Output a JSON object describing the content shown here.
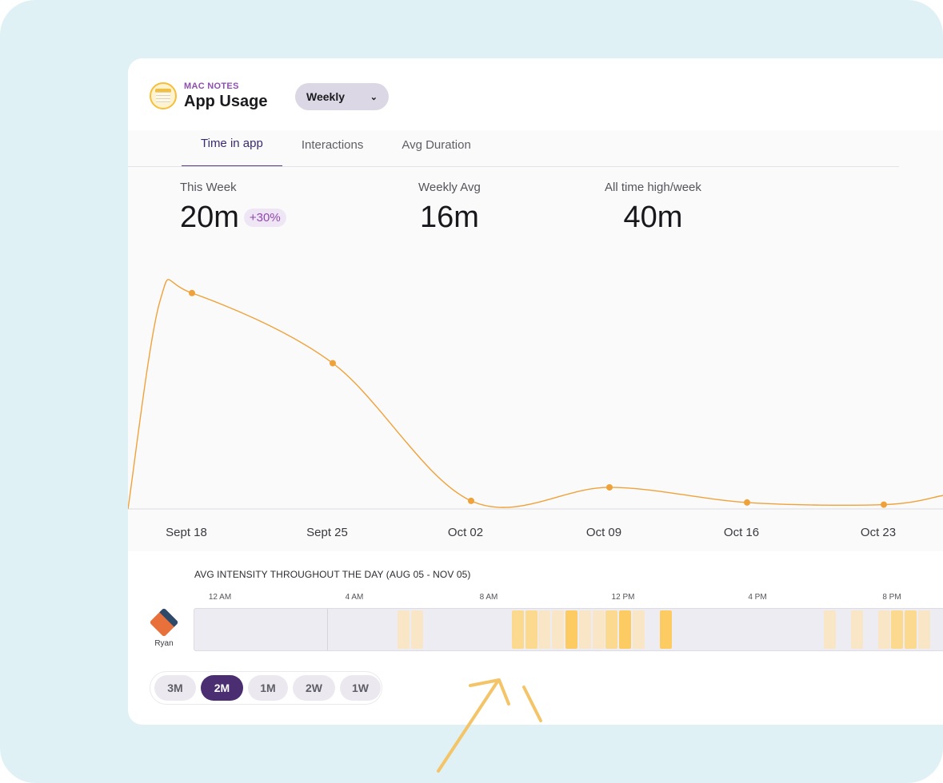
{
  "header": {
    "eyebrow": "MAC NOTES",
    "title": "App Usage",
    "period_select": "Weekly"
  },
  "tabs": [
    {
      "label": "Time in app",
      "active": true
    },
    {
      "label": "Interactions",
      "active": false
    },
    {
      "label": "Avg Duration",
      "active": false
    }
  ],
  "stats": {
    "this_week": {
      "label": "This Week",
      "value": "20m",
      "change": "+30%"
    },
    "weekly_avg": {
      "label": "Weekly Avg",
      "value": "16m"
    },
    "all_time_high": {
      "label": "All time high/week",
      "value": "40m"
    }
  },
  "colors": {
    "accent": "#4b2e72",
    "line": "#f0a23a",
    "heat_low": "#f8e6c7",
    "heat_mid": "#fbd98f",
    "heat_high": "#fccc63"
  },
  "chart_data": {
    "type": "line",
    "x": [
      "Sept 18",
      "Sept 25",
      "Oct 02",
      "Oct 09",
      "Oct 16",
      "Oct 23"
    ],
    "series": [
      {
        "values": [
          40,
          27,
          1.5,
          4,
          1.2,
          0.8
        ]
      }
    ],
    "ylim": [
      0,
      45
    ],
    "grid": false
  },
  "heatmap": {
    "title": "AVG INTENSITY THROUGHOUT THE DAY (AUG 05 - NOV 05)",
    "ticks": [
      "12 AM",
      "4 AM",
      "8 AM",
      "12 PM",
      "4 PM",
      "8 PM"
    ],
    "user": "Ryan",
    "cells": [
      {
        "hour": 6.0,
        "level": 1
      },
      {
        "hour": 6.4,
        "level": 1
      },
      {
        "hour": 9.4,
        "level": 2
      },
      {
        "hour": 9.8,
        "level": 2
      },
      {
        "hour": 10.2,
        "level": 1
      },
      {
        "hour": 10.6,
        "level": 1
      },
      {
        "hour": 11.0,
        "level": 3
      },
      {
        "hour": 11.4,
        "level": 1
      },
      {
        "hour": 11.8,
        "level": 1
      },
      {
        "hour": 12.2,
        "level": 2
      },
      {
        "hour": 12.6,
        "level": 3
      },
      {
        "hour": 13.0,
        "level": 1
      },
      {
        "hour": 13.8,
        "level": 3
      },
      {
        "hour": 18.7,
        "level": 1
      },
      {
        "hour": 19.5,
        "level": 1
      },
      {
        "hour": 20.3,
        "level": 1
      },
      {
        "hour": 20.7,
        "level": 2
      },
      {
        "hour": 21.1,
        "level": 2
      },
      {
        "hour": 21.5,
        "level": 1
      }
    ]
  },
  "ranges": [
    {
      "label": "3M",
      "active": false
    },
    {
      "label": "2M",
      "active": true
    },
    {
      "label": "1M",
      "active": false
    },
    {
      "label": "2W",
      "active": false
    },
    {
      "label": "1W",
      "active": false
    }
  ]
}
